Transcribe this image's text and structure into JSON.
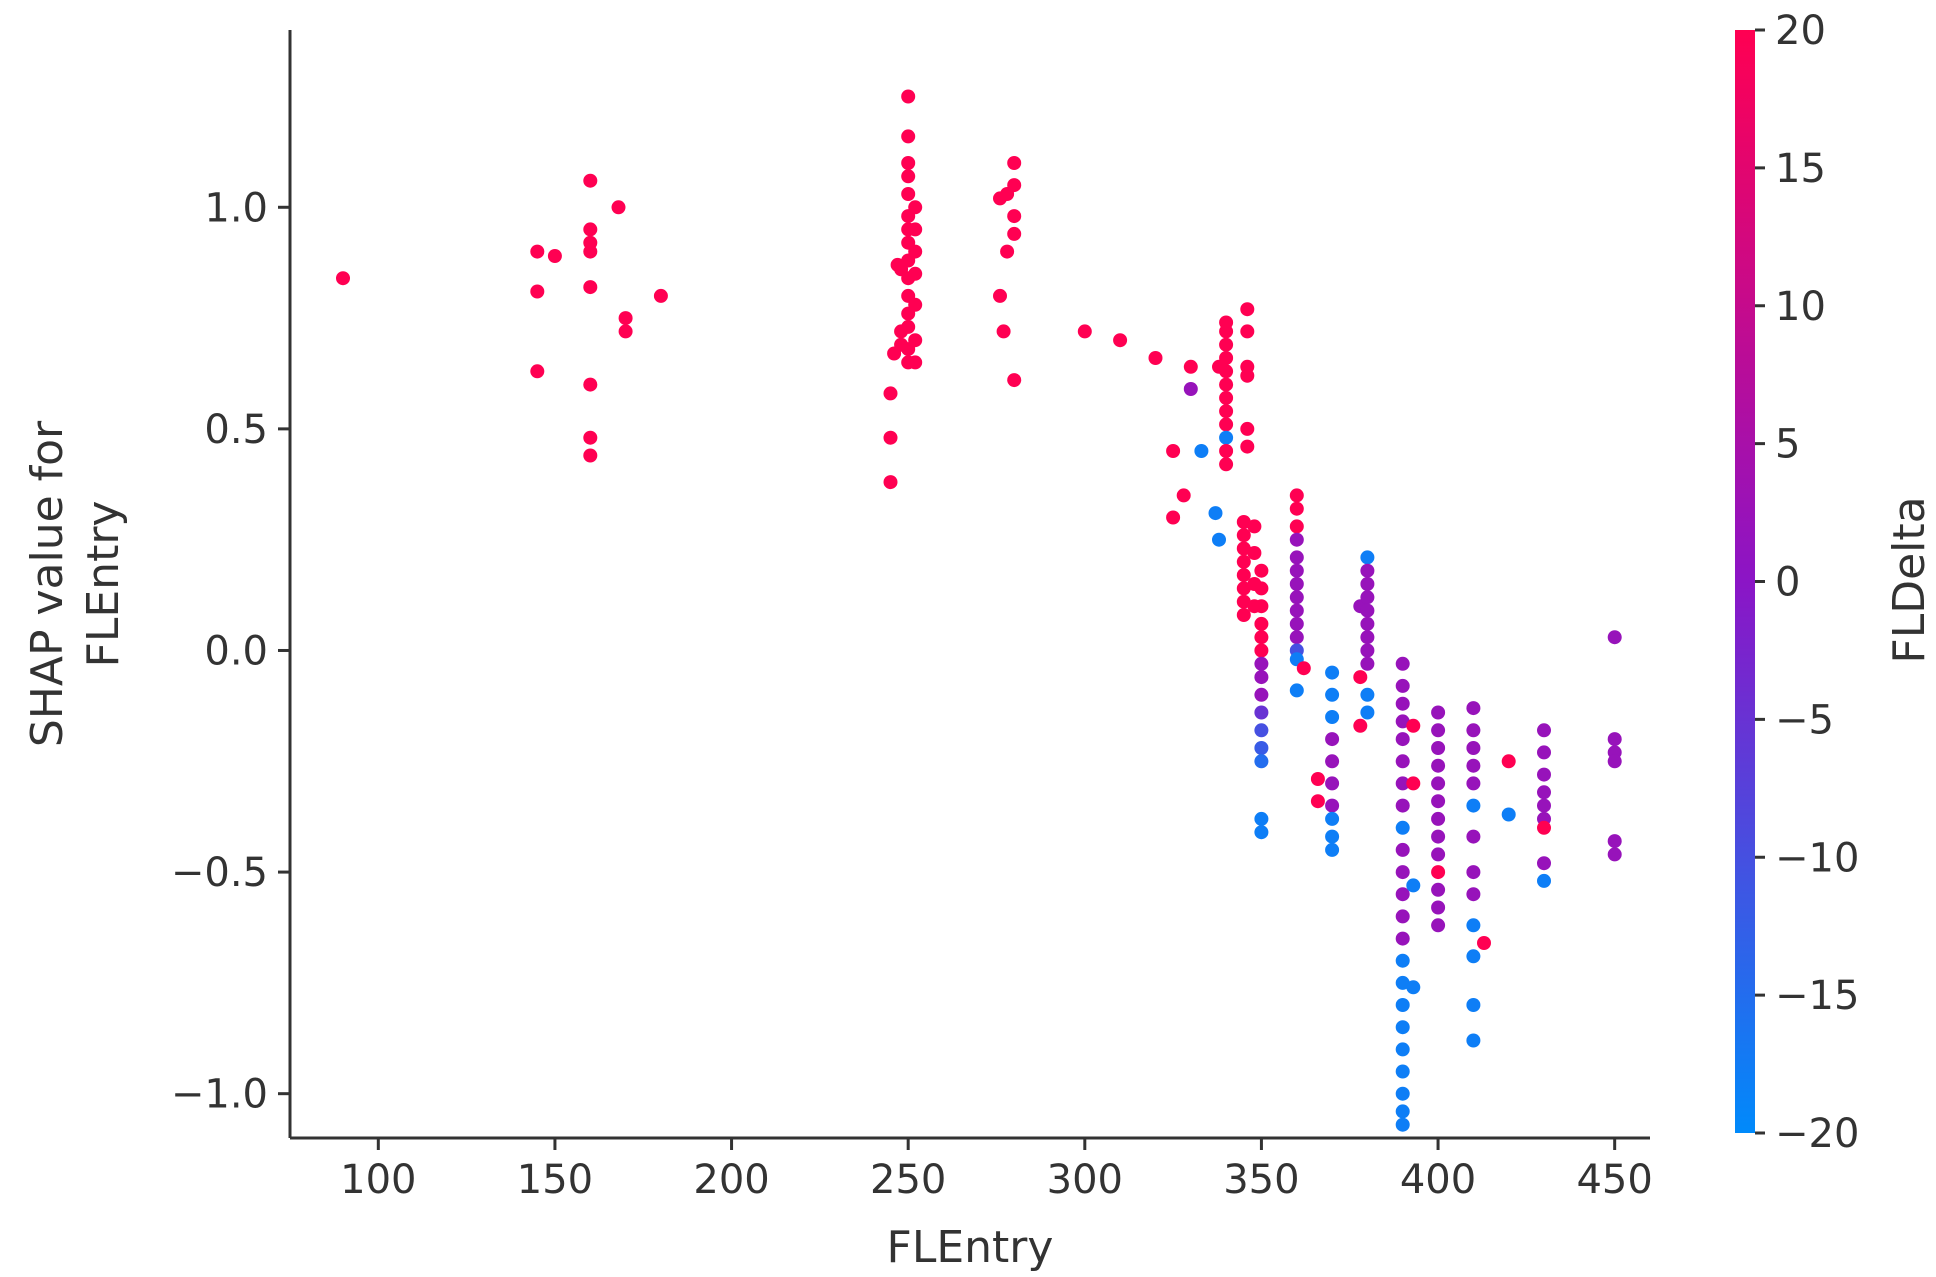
{
  "chart_data": {
    "type": "scatter",
    "xlabel": "FLEntry",
    "ylabel": "SHAP value for\nFLEntry",
    "colorbar_label": "FLDelta",
    "xlim": [
      75,
      460
    ],
    "ylim": [
      -1.1,
      1.4
    ],
    "x_ticks": [
      100,
      150,
      200,
      250,
      300,
      350,
      400,
      450
    ],
    "y_ticks": [
      -1.0,
      -0.5,
      0.0,
      0.5,
      1.0
    ],
    "y_tick_labels": [
      "−1.0",
      "−0.5",
      "0.0",
      "0.5",
      "1.0"
    ],
    "color_range": [
      -20,
      20
    ],
    "color_ticks": [
      -20,
      -15,
      -10,
      -5,
      0,
      5,
      10,
      15,
      20
    ],
    "color_tick_labels": [
      "−20",
      "−15",
      "−10",
      "−5",
      "0",
      "5",
      "10",
      "15",
      "20"
    ],
    "colors": {
      "low": "#008afb",
      "mid": "#8b15c6",
      "high": "#ff0052",
      "axis": "#333333"
    },
    "points": [
      [
        90,
        0.84,
        20
      ],
      [
        145,
        0.9,
        20
      ],
      [
        145,
        0.81,
        20
      ],
      [
        145,
        0.63,
        20
      ],
      [
        150,
        0.89,
        20
      ],
      [
        160,
        1.06,
        20
      ],
      [
        160,
        0.95,
        20
      ],
      [
        160,
        0.92,
        20
      ],
      [
        160,
        0.9,
        20
      ],
      [
        160,
        0.82,
        20
      ],
      [
        160,
        0.6,
        20
      ],
      [
        160,
        0.48,
        20
      ],
      [
        160,
        0.44,
        20
      ],
      [
        168,
        1.0,
        20
      ],
      [
        170,
        0.75,
        20
      ],
      [
        170,
        0.72,
        20
      ],
      [
        180,
        0.8,
        20
      ],
      [
        245,
        0.58,
        20
      ],
      [
        245,
        0.48,
        20
      ],
      [
        245,
        0.38,
        20
      ],
      [
        246,
        0.67,
        20
      ],
      [
        247,
        0.87,
        20
      ],
      [
        248,
        0.86,
        20
      ],
      [
        248,
        0.72,
        20
      ],
      [
        248,
        0.69,
        20
      ],
      [
        250,
        1.25,
        20
      ],
      [
        250,
        1.16,
        20
      ],
      [
        250,
        1.1,
        20
      ],
      [
        250,
        1.07,
        20
      ],
      [
        250,
        1.03,
        20
      ],
      [
        250,
        0.98,
        20
      ],
      [
        250,
        0.95,
        20
      ],
      [
        250,
        0.92,
        20
      ],
      [
        250,
        0.88,
        20
      ],
      [
        250,
        0.84,
        20
      ],
      [
        250,
        0.8,
        20
      ],
      [
        250,
        0.76,
        20
      ],
      [
        250,
        0.73,
        20
      ],
      [
        250,
        0.68,
        20
      ],
      [
        250,
        0.65,
        20
      ],
      [
        252,
        1.0,
        20
      ],
      [
        252,
        0.95,
        20
      ],
      [
        252,
        0.9,
        20
      ],
      [
        252,
        0.85,
        20
      ],
      [
        252,
        0.78,
        20
      ],
      [
        252,
        0.7,
        20
      ],
      [
        252,
        0.65,
        20
      ],
      [
        276,
        1.02,
        20
      ],
      [
        278,
        1.03,
        20
      ],
      [
        280,
        1.1,
        20
      ],
      [
        280,
        1.05,
        20
      ],
      [
        280,
        0.98,
        20
      ],
      [
        280,
        0.94,
        20
      ],
      [
        278,
        0.9,
        20
      ],
      [
        276,
        0.8,
        20
      ],
      [
        277,
        0.72,
        20
      ],
      [
        280,
        0.61,
        20
      ],
      [
        300,
        0.72,
        20
      ],
      [
        310,
        0.7,
        20
      ],
      [
        320,
        0.66,
        20
      ],
      [
        325,
        0.45,
        20
      ],
      [
        325,
        0.3,
        20
      ],
      [
        328,
        0.35,
        20
      ],
      [
        330,
        0.64,
        20
      ],
      [
        330,
        0.59,
        2
      ],
      [
        333,
        0.45,
        -18
      ],
      [
        337,
        0.31,
        -18
      ],
      [
        338,
        0.64,
        20
      ],
      [
        338,
        0.25,
        -18
      ],
      [
        340,
        0.74,
        20
      ],
      [
        340,
        0.72,
        20
      ],
      [
        340,
        0.69,
        20
      ],
      [
        340,
        0.66,
        20
      ],
      [
        340,
        0.63,
        20
      ],
      [
        340,
        0.6,
        20
      ],
      [
        340,
        0.57,
        20
      ],
      [
        340,
        0.54,
        20
      ],
      [
        340,
        0.51,
        20
      ],
      [
        340,
        0.48,
        -18
      ],
      [
        340,
        0.45,
        20
      ],
      [
        340,
        0.42,
        20
      ],
      [
        346,
        0.77,
        20
      ],
      [
        346,
        0.72,
        20
      ],
      [
        346,
        0.64,
        20
      ],
      [
        346,
        0.62,
        20
      ],
      [
        346,
        0.5,
        20
      ],
      [
        346,
        0.46,
        20
      ],
      [
        345,
        0.29,
        20
      ],
      [
        345,
        0.26,
        20
      ],
      [
        345,
        0.23,
        20
      ],
      [
        345,
        0.2,
        20
      ],
      [
        345,
        0.17,
        20
      ],
      [
        345,
        0.14,
        20
      ],
      [
        345,
        0.11,
        20
      ],
      [
        345,
        0.08,
        20
      ],
      [
        348,
        0.28,
        20
      ],
      [
        348,
        0.22,
        20
      ],
      [
        348,
        0.15,
        20
      ],
      [
        348,
        0.1,
        20
      ],
      [
        350,
        0.18,
        20
      ],
      [
        350,
        0.14,
        20
      ],
      [
        350,
        0.1,
        20
      ],
      [
        350,
        0.06,
        20
      ],
      [
        350,
        0.03,
        20
      ],
      [
        350,
        0.0,
        20
      ],
      [
        350,
        -0.03,
        2
      ],
      [
        350,
        -0.06,
        2
      ],
      [
        350,
        -0.1,
        2
      ],
      [
        350,
        -0.14,
        -5
      ],
      [
        350,
        -0.18,
        -10
      ],
      [
        350,
        -0.22,
        -12
      ],
      [
        350,
        -0.25,
        -15
      ],
      [
        350,
        -0.38,
        -18
      ],
      [
        350,
        -0.41,
        -18
      ],
      [
        360,
        0.35,
        20
      ],
      [
        360,
        0.32,
        20
      ],
      [
        360,
        0.28,
        20
      ],
      [
        360,
        0.25,
        2
      ],
      [
        360,
        0.21,
        2
      ],
      [
        360,
        0.18,
        2
      ],
      [
        360,
        0.15,
        2
      ],
      [
        360,
        0.12,
        2
      ],
      [
        360,
        0.09,
        2
      ],
      [
        360,
        0.06,
        2
      ],
      [
        360,
        0.03,
        2
      ],
      [
        360,
        0.0,
        -10
      ],
      [
        360,
        -0.02,
        -18
      ],
      [
        360,
        -0.09,
        -18
      ],
      [
        362,
        -0.04,
        20
      ],
      [
        366,
        -0.29,
        20
      ],
      [
        366,
        -0.34,
        20
      ],
      [
        370,
        -0.05,
        -18
      ],
      [
        370,
        -0.1,
        -18
      ],
      [
        370,
        -0.15,
        -18
      ],
      [
        370,
        -0.2,
        2
      ],
      [
        370,
        -0.25,
        2
      ],
      [
        370,
        -0.3,
        2
      ],
      [
        370,
        -0.35,
        2
      ],
      [
        370,
        -0.38,
        -18
      ],
      [
        370,
        -0.42,
        -18
      ],
      [
        370,
        -0.45,
        -18
      ],
      [
        378,
        0.1,
        2
      ],
      [
        378,
        -0.06,
        20
      ],
      [
        378,
        -0.17,
        20
      ],
      [
        380,
        0.21,
        -18
      ],
      [
        380,
        0.18,
        2
      ],
      [
        380,
        0.15,
        2
      ],
      [
        380,
        0.12,
        2
      ],
      [
        380,
        0.09,
        2
      ],
      [
        380,
        0.06,
        2
      ],
      [
        380,
        0.03,
        2
      ],
      [
        380,
        0.0,
        2
      ],
      [
        380,
        -0.03,
        2
      ],
      [
        380,
        -0.1,
        -18
      ],
      [
        380,
        -0.14,
        -18
      ],
      [
        390,
        -0.03,
        2
      ],
      [
        390,
        -0.08,
        2
      ],
      [
        390,
        -0.12,
        2
      ],
      [
        390,
        -0.16,
        2
      ],
      [
        390,
        -0.2,
        2
      ],
      [
        390,
        -0.25,
        2
      ],
      [
        390,
        -0.3,
        2
      ],
      [
        390,
        -0.35,
        2
      ],
      [
        390,
        -0.4,
        -18
      ],
      [
        390,
        -0.45,
        2
      ],
      [
        390,
        -0.5,
        2
      ],
      [
        390,
        -0.55,
        2
      ],
      [
        390,
        -0.6,
        2
      ],
      [
        390,
        -0.65,
        2
      ],
      [
        390,
        -0.7,
        -18
      ],
      [
        390,
        -0.75,
        -18
      ],
      [
        390,
        -0.8,
        -18
      ],
      [
        390,
        -0.85,
        -18
      ],
      [
        390,
        -0.9,
        -18
      ],
      [
        390,
        -0.95,
        -18
      ],
      [
        390,
        -1.0,
        -18
      ],
      [
        390,
        -1.04,
        -18
      ],
      [
        390,
        -1.07,
        -18
      ],
      [
        393,
        -0.17,
        20
      ],
      [
        393,
        -0.3,
        20
      ],
      [
        393,
        -0.53,
        -18
      ],
      [
        393,
        -0.76,
        -18
      ],
      [
        400,
        -0.14,
        2
      ],
      [
        400,
        -0.18,
        2
      ],
      [
        400,
        -0.22,
        2
      ],
      [
        400,
        -0.26,
        2
      ],
      [
        400,
        -0.3,
        2
      ],
      [
        400,
        -0.34,
        2
      ],
      [
        400,
        -0.38,
        2
      ],
      [
        400,
        -0.42,
        2
      ],
      [
        400,
        -0.46,
        2
      ],
      [
        400,
        -0.5,
        20
      ],
      [
        400,
        -0.54,
        2
      ],
      [
        400,
        -0.58,
        2
      ],
      [
        400,
        -0.62,
        2
      ],
      [
        410,
        -0.13,
        2
      ],
      [
        410,
        -0.18,
        2
      ],
      [
        410,
        -0.22,
        2
      ],
      [
        410,
        -0.26,
        2
      ],
      [
        410,
        -0.3,
        2
      ],
      [
        410,
        -0.35,
        -18
      ],
      [
        410,
        -0.42,
        2
      ],
      [
        410,
        -0.5,
        2
      ],
      [
        410,
        -0.55,
        2
      ],
      [
        410,
        -0.62,
        -18
      ],
      [
        410,
        -0.69,
        -18
      ],
      [
        410,
        -0.8,
        -18
      ],
      [
        410,
        -0.88,
        -18
      ],
      [
        413,
        -0.66,
        20
      ],
      [
        420,
        -0.25,
        20
      ],
      [
        420,
        -0.37,
        -18
      ],
      [
        430,
        -0.18,
        2
      ],
      [
        430,
        -0.23,
        2
      ],
      [
        430,
        -0.28,
        2
      ],
      [
        430,
        -0.32,
        2
      ],
      [
        430,
        -0.35,
        2
      ],
      [
        430,
        -0.38,
        2
      ],
      [
        430,
        -0.4,
        20
      ],
      [
        430,
        -0.48,
        2
      ],
      [
        430,
        -0.52,
        -18
      ],
      [
        450,
        0.03,
        2
      ],
      [
        450,
        -0.2,
        2
      ],
      [
        450,
        -0.23,
        2
      ],
      [
        450,
        -0.25,
        2
      ],
      [
        450,
        -0.43,
        2
      ],
      [
        450,
        -0.46,
        2
      ]
    ]
  }
}
